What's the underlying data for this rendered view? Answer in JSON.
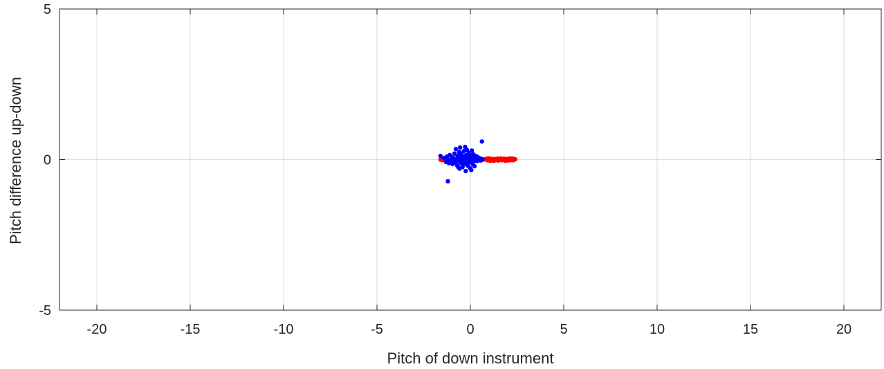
{
  "chart_data": {
    "type": "scatter",
    "title": "",
    "xlabel": "Pitch of down instrument",
    "ylabel": "Pitch difference up-down",
    "xlim": [
      -22,
      22
    ],
    "ylim": [
      -5,
      5
    ],
    "xticks": [
      -20,
      -15,
      -10,
      -5,
      0,
      5,
      10,
      15,
      20
    ],
    "yticks": [
      -5,
      0,
      5
    ],
    "xtick_labels": [
      "-20",
      "-15",
      "-10",
      "-5",
      "0",
      "5",
      "10",
      "15",
      "20"
    ],
    "ytick_labels": [
      "-5",
      "0",
      "5"
    ],
    "grid": true,
    "legend": "none",
    "series": [
      {
        "color": "#ff0000",
        "points": [
          [
            -1.6,
            0.0
          ],
          [
            -1.5,
            -0.02
          ],
          [
            -1.45,
            0.02
          ],
          [
            0.7,
            0.0
          ],
          [
            0.8,
            0.02
          ],
          [
            0.9,
            -0.02
          ],
          [
            1.0,
            0.0
          ],
          [
            1.1,
            0.03
          ],
          [
            1.15,
            -0.03
          ],
          [
            1.2,
            0.0
          ],
          [
            1.3,
            0.02
          ],
          [
            1.35,
            -0.02
          ],
          [
            1.4,
            0.0
          ],
          [
            1.45,
            0.03
          ],
          [
            1.5,
            -0.03
          ],
          [
            1.55,
            0.01
          ],
          [
            1.6,
            0.0
          ],
          [
            1.65,
            0.02
          ],
          [
            1.7,
            -0.02
          ],
          [
            1.75,
            0.0
          ],
          [
            1.8,
            0.03
          ],
          [
            1.85,
            -0.01
          ],
          [
            1.9,
            0.0
          ],
          [
            1.95,
            0.02
          ],
          [
            2.0,
            -0.03
          ],
          [
            2.05,
            0.0
          ],
          [
            2.1,
            0.02
          ],
          [
            2.15,
            -0.02
          ],
          [
            2.2,
            0.0
          ],
          [
            2.25,
            0.03
          ],
          [
            2.3,
            -0.02
          ],
          [
            2.35,
            0.0
          ],
          [
            2.4,
            0.01
          ],
          [
            1.25,
            -0.04
          ],
          [
            1.62,
            0.04
          ],
          [
            1.88,
            -0.04
          ],
          [
            2.12,
            0.04
          ],
          [
            2.28,
            0.03
          ],
          [
            0.95,
            0.04
          ],
          [
            1.05,
            -0.04
          ]
        ]
      },
      {
        "color": "#0000ff",
        "points": [
          [
            -1.6,
            0.12
          ],
          [
            -1.2,
            -0.72
          ],
          [
            -1.4,
            0.05
          ],
          [
            -1.3,
            -0.08
          ],
          [
            -1.25,
            0.1
          ],
          [
            -1.2,
            0.0
          ],
          [
            -1.15,
            -0.12
          ],
          [
            -1.1,
            0.15
          ],
          [
            -1.05,
            -0.05
          ],
          [
            -1.0,
            0.08
          ],
          [
            -0.95,
            -0.15
          ],
          [
            -0.9,
            0.05
          ],
          [
            -0.85,
            0.2
          ],
          [
            -0.8,
            -0.1
          ],
          [
            -0.78,
            0.35
          ],
          [
            -0.75,
            0.0
          ],
          [
            -0.7,
            -0.2
          ],
          [
            -0.68,
            0.12
          ],
          [
            -0.65,
            -0.05
          ],
          [
            -0.6,
            0.25
          ],
          [
            -0.58,
            -0.3
          ],
          [
            -0.55,
            0.05
          ],
          [
            -0.5,
            -0.12
          ],
          [
            -0.48,
            0.18
          ],
          [
            -0.45,
            0.0
          ],
          [
            -0.42,
            -0.25
          ],
          [
            -0.4,
            0.1
          ],
          [
            -0.38,
            -0.08
          ],
          [
            -0.35,
            0.28
          ],
          [
            -0.32,
            -0.15
          ],
          [
            -0.3,
            0.05
          ],
          [
            -0.28,
            0.42
          ],
          [
            -0.25,
            -0.38
          ],
          [
            -0.22,
            0.15
          ],
          [
            -0.2,
            -0.05
          ],
          [
            -0.18,
            0.32
          ],
          [
            -0.15,
            -0.2
          ],
          [
            -0.12,
            0.08
          ],
          [
            -0.1,
            -0.1
          ],
          [
            -0.08,
            0.22
          ],
          [
            -0.05,
            0.0
          ],
          [
            -0.02,
            -0.28
          ],
          [
            0.0,
            0.12
          ],
          [
            0.05,
            -0.08
          ],
          [
            0.08,
            0.3
          ],
          [
            0.1,
            0.05
          ],
          [
            0.12,
            -0.15
          ],
          [
            0.15,
            0.18
          ],
          [
            0.18,
            -0.05
          ],
          [
            0.2,
            0.1
          ],
          [
            0.22,
            -0.22
          ],
          [
            0.25,
            0.05
          ],
          [
            0.3,
            0.12
          ],
          [
            0.35,
            -0.05
          ],
          [
            0.4,
            0.08
          ],
          [
            0.45,
            -0.02
          ],
          [
            0.5,
            0.04
          ],
          [
            0.55,
            -0.03
          ],
          [
            0.6,
            0.02
          ],
          [
            0.62,
            0.6
          ],
          [
            0.65,
            0.0
          ],
          [
            -0.9,
            -0.02
          ],
          [
            -0.7,
            0.02
          ],
          [
            -0.5,
            0.0
          ],
          [
            -0.3,
            -0.03
          ],
          [
            -0.1,
            0.02
          ],
          [
            0.1,
            -0.02
          ],
          [
            0.3,
            0.0
          ],
          [
            -0.6,
            0.06
          ],
          [
            -0.4,
            -0.06
          ],
          [
            -0.2,
            0.06
          ],
          [
            0.0,
            -0.06
          ],
          [
            0.2,
            0.03
          ],
          [
            -0.8,
            0.0
          ],
          [
            -1.0,
            -0.03
          ],
          [
            -0.55,
            0.4
          ],
          [
            0.05,
            -0.35
          ],
          [
            -0.65,
            -0.25
          ]
        ]
      }
    ]
  }
}
